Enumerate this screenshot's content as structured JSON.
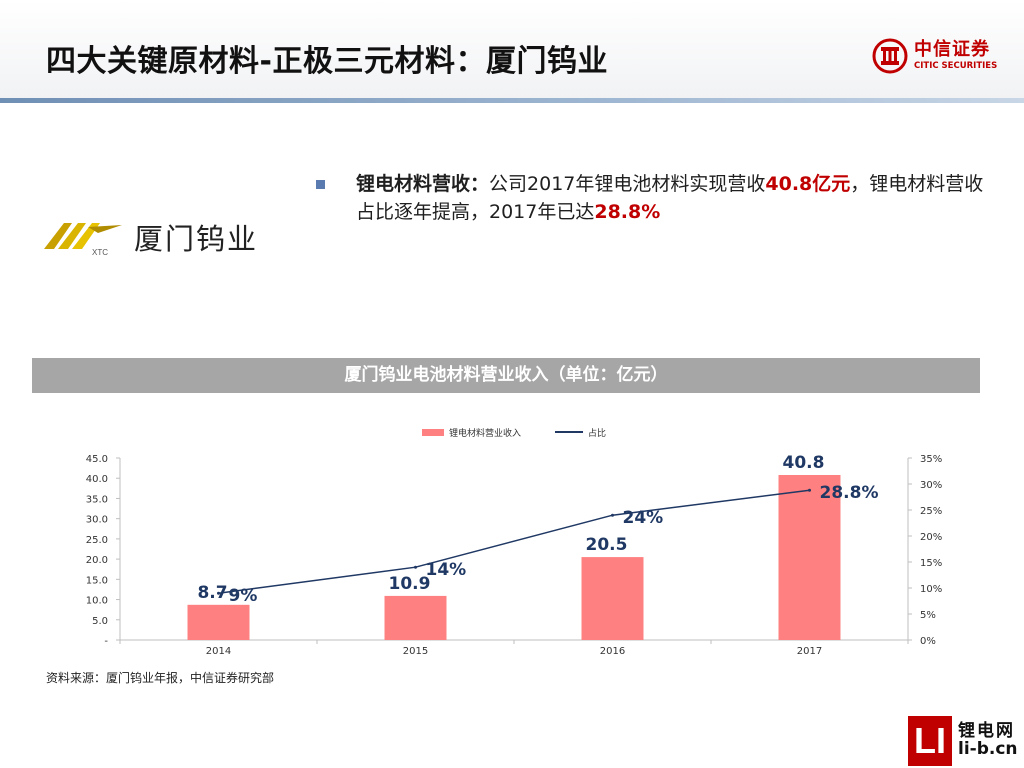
{
  "header": {
    "title": "四大关键原材料-正极三元材料：厦门钨业",
    "brand_cn": "中信证券",
    "brand_en": "CITIC SECURITIES"
  },
  "company": {
    "logo_mark": "XTC",
    "name": "厦门钨业"
  },
  "bullet": {
    "label": "锂电材料营收：",
    "text1": "公司2017年锂电池材料实现营收",
    "highlight1": "40.8亿元",
    "text2": "，锂电材料营收占比逐年提高，2017年已达",
    "highlight2": "28.8%"
  },
  "chart_title": "厦门钨业电池材料营业收入（单位：亿元）",
  "chart_data": {
    "type": "bar",
    "categories": [
      "2014",
      "2015",
      "2016",
      "2017"
    ],
    "series": [
      {
        "name": "锂电材料营业收入",
        "type": "bar",
        "axis": "left",
        "values": [
          8.7,
          10.9,
          20.5,
          40.8
        ],
        "labels": [
          "8.7",
          "10.9",
          "20.5",
          "40.8"
        ],
        "color": "#ff8080"
      },
      {
        "name": "占比",
        "type": "line",
        "axis": "right",
        "values": [
          9,
          14,
          24,
          28.8
        ],
        "labels": [
          "9%",
          "14%",
          "24%",
          "28.8%"
        ],
        "color": "#1f3864"
      }
    ],
    "y_left": {
      "min": 0,
      "max": 45,
      "ticks": [
        "-",
        "5.0",
        "10.0",
        "15.0",
        "20.0",
        "25.0",
        "30.0",
        "35.0",
        "40.0",
        "45.0"
      ]
    },
    "y_right": {
      "min": 0,
      "max": 35,
      "ticks": [
        "0%",
        "5%",
        "10%",
        "15%",
        "20%",
        "25%",
        "30%",
        "35%"
      ]
    },
    "legend_position": "top-center",
    "grid": false
  },
  "source": "资料来源：厦门钨业年报，中信证券研究部",
  "watermark": {
    "mark": "LI",
    "cn": "锂电网",
    "en": "li-b.cn"
  }
}
